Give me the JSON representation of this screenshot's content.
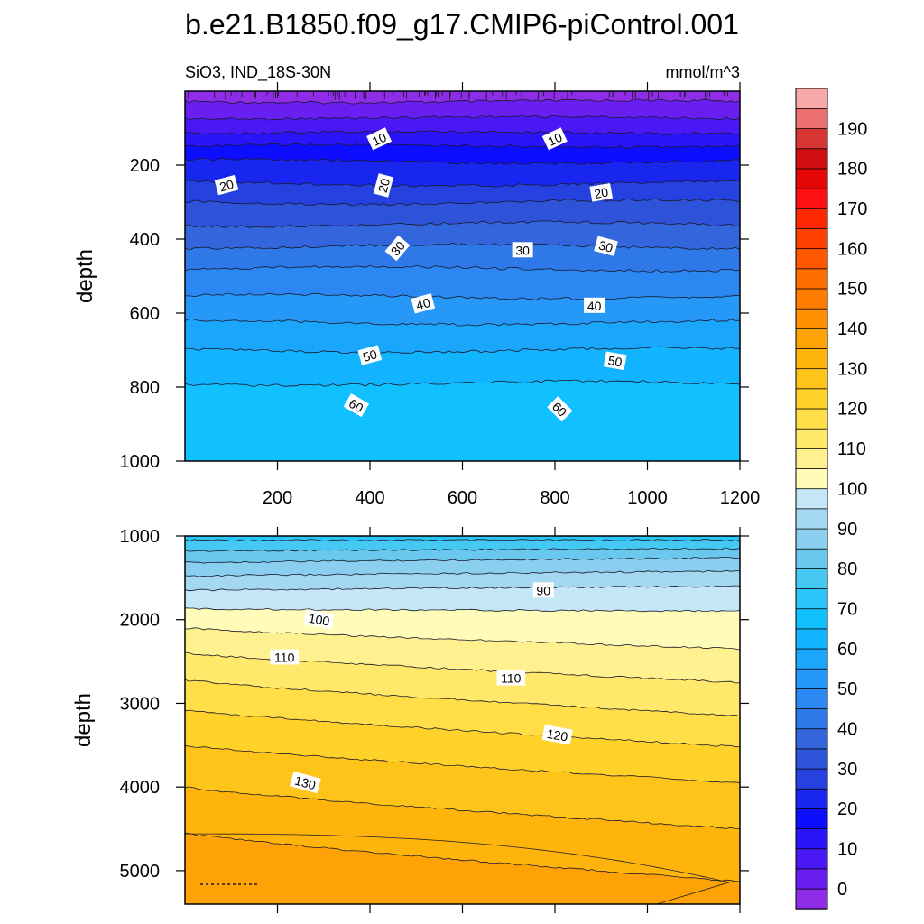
{
  "figure": {
    "title": "b.e21.B1850.f09_g17.CMIP6-piControl.001",
    "variable_label": "SiO3, IND_18S-30N",
    "units_label": "mmol/m^3"
  },
  "chart_data": [
    {
      "type": "contour",
      "panel": "upper",
      "title": "SiO3, IND_18S-30N",
      "units": "mmol/m^3",
      "xlabel": "",
      "ylabel": "depth",
      "xlim": [
        0,
        1200
      ],
      "ylim": [
        1000,
        0
      ],
      "x_ticks": [
        200,
        400,
        600,
        800,
        1000,
        1200
      ],
      "y_ticks": [
        200,
        400,
        600,
        800,
        1000
      ],
      "contour_interval": 5,
      "surface_value": 0,
      "bottom_value": 70,
      "contour_labels": [
        {
          "text": "10",
          "x": 420,
          "depth": 130,
          "angle": -25
        },
        {
          "text": "10",
          "x": 800,
          "depth": 130,
          "angle": -25
        },
        {
          "text": "20",
          "x": 90,
          "depth": 255,
          "angle": -15
        },
        {
          "text": "20",
          "x": 430,
          "depth": 255,
          "angle": -75
        },
        {
          "text": "20",
          "x": 900,
          "depth": 275,
          "angle": -10
        },
        {
          "text": "30",
          "x": 460,
          "depth": 425,
          "angle": -50
        },
        {
          "text": "30",
          "x": 730,
          "depth": 430,
          "angle": 0
        },
        {
          "text": "30",
          "x": 910,
          "depth": 420,
          "angle": 15
        },
        {
          "text": "40",
          "x": 515,
          "depth": 575,
          "angle": -15
        },
        {
          "text": "40",
          "x": 885,
          "depth": 580,
          "angle": 0
        },
        {
          "text": "50",
          "x": 400,
          "depth": 715,
          "angle": -15
        },
        {
          "text": "50",
          "x": 930,
          "depth": 730,
          "angle": 10
        },
        {
          "text": "60",
          "x": 370,
          "depth": 850,
          "angle": 30
        },
        {
          "text": "60",
          "x": 810,
          "depth": 860,
          "angle": 45
        }
      ]
    },
    {
      "type": "contour",
      "panel": "lower",
      "xlabel": "",
      "ylabel": "depth",
      "xlim": [
        0,
        1200
      ],
      "ylim": [
        5400,
        1000
      ],
      "x_ticks": [
        200,
        400,
        600,
        800,
        1000,
        1200
      ],
      "y_ticks": [
        1000,
        2000,
        3000,
        4000,
        5000
      ],
      "contour_interval": 5,
      "contour_labels": [
        {
          "text": "90",
          "x": 775,
          "depth": 1650,
          "angle": 0
        },
        {
          "text": "100",
          "x": 290,
          "depth": 2000,
          "angle": 10
        },
        {
          "text": "110",
          "x": 215,
          "depth": 2450,
          "angle": 0
        },
        {
          "text": "110",
          "x": 705,
          "depth": 2700,
          "angle": 0
        },
        {
          "text": "120",
          "x": 805,
          "depth": 3380,
          "angle": 10
        },
        {
          "text": "130",
          "x": 260,
          "depth": 3950,
          "angle": 15
        }
      ]
    }
  ],
  "colorbar": {
    "labels": [
      "0",
      "10",
      "20",
      "30",
      "40",
      "50",
      "60",
      "70",
      "80",
      "90",
      "100",
      "110",
      "120",
      "130",
      "140",
      "150",
      "160",
      "170",
      "180",
      "190"
    ],
    "colors": [
      "#8e2ce8",
      "#6a1ff2",
      "#4a18f5",
      "#2a14fa",
      "#0d0dff",
      "#1826f0",
      "#2542e0",
      "#2e52d8",
      "#3366dd",
      "#2f78e8",
      "#2b88f2",
      "#2598f8",
      "#1aa6fb",
      "#12b4ff",
      "#10c0ff",
      "#2ac6fb",
      "#45c8f2",
      "#6ac8ee",
      "#8acff0",
      "#a4d8f0",
      "#c5e6f6",
      "#fffbb8",
      "#fff190",
      "#ffe86a",
      "#ffde48",
      "#ffd22a",
      "#ffc41a",
      "#ffb40c",
      "#ffa205",
      "#ff9000",
      "#ff7e00",
      "#ff6c00",
      "#ff5800",
      "#ff4000",
      "#ff2800",
      "#ff1010",
      "#e60808",
      "#d01010",
      "#d83535",
      "#ec7070",
      "#f8aaaa"
    ]
  }
}
